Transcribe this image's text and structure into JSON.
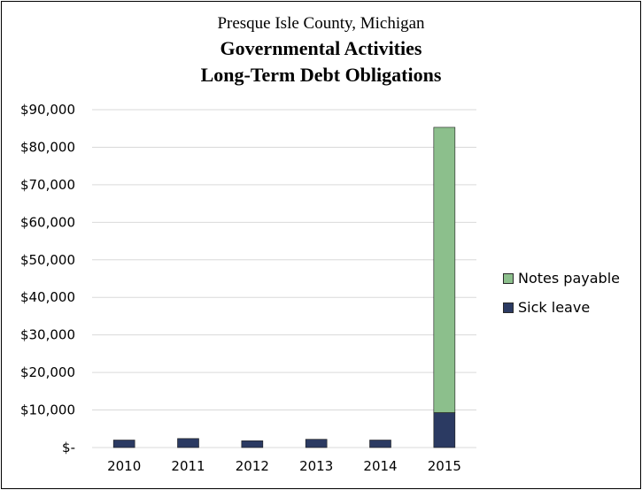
{
  "title_lines": [
    "Presque Isle County, Michigan",
    "Governmental Activities",
    "Long-Term Debt Obligations"
  ],
  "colors": {
    "notes_payable": "#8cbf8c",
    "sick_leave": "#2b3a62",
    "grid": "#d9d9d9"
  },
  "chart_data": {
    "type": "bar",
    "stacked": true,
    "title": "Governmental Activities Long-Term Debt Obligations",
    "subtitle": "Presque Isle County, Michigan",
    "categories": [
      "2010",
      "2011",
      "2012",
      "2013",
      "2014",
      "2015"
    ],
    "series": [
      {
        "name": "Sick leave",
        "values": [
          2000,
          2400,
          1800,
          2200,
          2000,
          9300
        ]
      },
      {
        "name": "Notes payable",
        "values": [
          0,
          0,
          0,
          0,
          0,
          76000
        ]
      }
    ],
    "y_ticks": [
      "$-",
      "$10,000",
      "$20,000",
      "$30,000",
      "$40,000",
      "$50,000",
      "$60,000",
      "$70,000",
      "$80,000",
      "$90,000"
    ],
    "ylim": [
      0,
      90000
    ],
    "grid": true,
    "legend": {
      "position": "right",
      "items": [
        "Notes payable",
        "Sick leave"
      ]
    },
    "xlabel": "",
    "ylabel": ""
  }
}
